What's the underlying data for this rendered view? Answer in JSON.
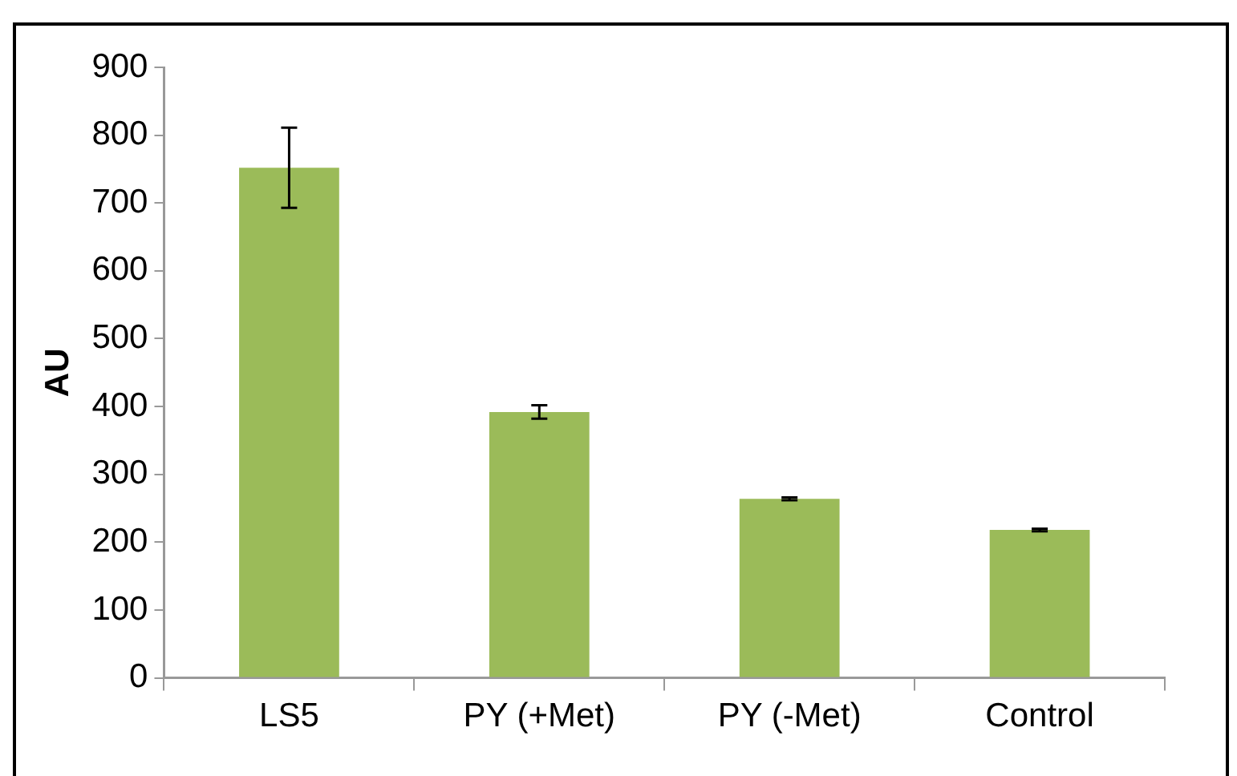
{
  "chart_data": {
    "type": "bar",
    "ylabel": "AU",
    "categories": [
      "LS5",
      "PY (+Met)",
      "PY (-Met)",
      "Control"
    ],
    "values": [
      752,
      392,
      264,
      218
    ],
    "errors": [
      59,
      10,
      2,
      2
    ],
    "color": "#9bbb59",
    "ylim": [
      0,
      900
    ],
    "yticks": [
      0,
      100,
      200,
      300,
      400,
      500,
      600,
      700,
      800,
      900
    ],
    "grid": false,
    "legend": false
  }
}
